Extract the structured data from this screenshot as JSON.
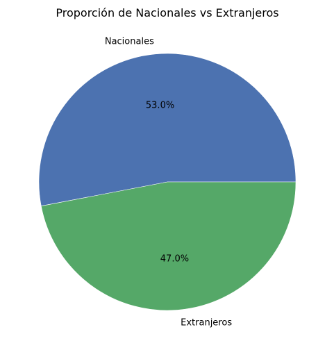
{
  "chart_data": {
    "type": "pie",
    "title": "Proporción de Nacionales vs Extranjeros",
    "labels": [
      "Nacionales",
      "Extranjeros"
    ],
    "values": [
      53.0,
      47.0
    ],
    "pct_labels": [
      "53.0%",
      "47.0%"
    ],
    "colors": [
      "#4c72b0",
      "#55a868"
    ],
    "start_angle_deg": 0,
    "direction": "counterclockwise"
  }
}
